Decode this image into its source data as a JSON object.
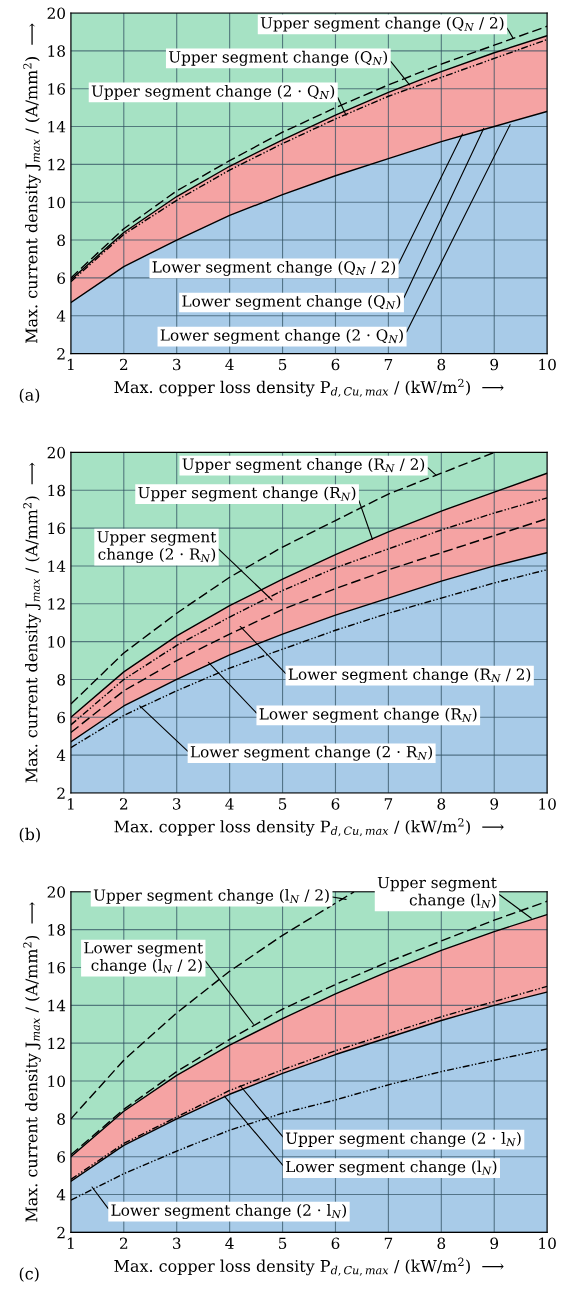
{
  "chart_data": [
    {
      "type": "line",
      "xlabel": "Max. copper loss density P$_{d,Cu,max}$ / (kW/m$^{2}$)  ⟶",
      "ylabel": "Max. current density J$_{max}$ / (A/mm$^{2}$)  ⟶",
      "x": [
        1,
        2,
        3,
        4,
        5,
        6,
        7,
        8,
        9,
        10
      ],
      "xlim": [
        1,
        10
      ],
      "ylim": [
        2,
        20
      ],
      "xticks": [
        1,
        2,
        3,
        4,
        5,
        6,
        7,
        8,
        9,
        10
      ],
      "yticks": [
        2,
        4,
        6,
        8,
        10,
        12,
        14,
        16,
        18,
        20
      ],
      "grid": true,
      "bands": [
        {
          "axis": "y",
          "from": 2,
          "to": 20,
          "color": "#a6e2c4"
        }
      ],
      "series": [
        {
          "type": "area",
          "color": "#f5a3a3",
          "values": [
            5.9,
            8.4,
            10.3,
            11.9,
            13.3,
            14.6,
            15.8,
            16.9,
            17.9,
            18.8
          ]
        },
        {
          "type": "area",
          "color": "#a8cbe8",
          "values": [
            4.7,
            6.6,
            8.0,
            9.3,
            10.4,
            11.4,
            12.3,
            13.2,
            14.0,
            14.8
          ]
        },
        {
          "color": "#000000",
          "line_style": "dashed",
          "values": [
            6.0,
            8.6,
            10.6,
            12.2,
            13.7,
            15.0,
            16.2,
            17.3,
            18.3,
            19.3
          ]
        },
        {
          "color": "#000000",
          "line_style": "dotted",
          "values": [
            5.8,
            8.3,
            10.1,
            11.7,
            13.1,
            14.4,
            15.6,
            16.6,
            17.6,
            18.6
          ]
        }
      ],
      "annotations": [
        {
          "text": "Upper segment change (Q$_{N}$ / 2)",
          "x": 9.35,
          "y": 18.7
        },
        {
          "text": "Upper segment change (Q$_{N}$)",
          "x": 7.4,
          "y": 16.2
        },
        {
          "text": "Upper segment change (2 · Q$_{N}$)",
          "x": 6.2,
          "y": 14.6
        },
        {
          "text": "Lower segment change (Q$_{N}$ / 2)",
          "x": 8.4,
          "y": 13.6
        },
        {
          "text": "Lower segment change (Q$_{N}$)",
          "x": 8.8,
          "y": 13.9
        },
        {
          "text": "Lower segment change (2 · Q$_{N}$)",
          "x": 9.3,
          "y": 14.1
        },
        "(a)"
      ]
    },
    {
      "type": "line",
      "xlabel": "Max. copper loss density P$_{d,Cu,max}$ / (kW/m$^{2}$)  ⟶",
      "ylabel": "Max. current density J$_{max}$ / (A/mm$^{2}$)  ⟶",
      "x": [
        1,
        2,
        3,
        4,
        5,
        6,
        7,
        8,
        9,
        10
      ],
      "xlim": [
        1,
        10
      ],
      "ylim": [
        2,
        20
      ],
      "xticks": [
        1,
        2,
        3,
        4,
        5,
        6,
        7,
        8,
        9,
        10
      ],
      "yticks": [
        2,
        4,
        6,
        8,
        10,
        12,
        14,
        16,
        18,
        20
      ],
      "grid": true,
      "bands": [
        {
          "axis": "y",
          "from": 2,
          "to": 20,
          "color": "#a6e2c4"
        }
      ],
      "series": [
        {
          "type": "area",
          "color": "#f5a3a3",
          "values": [
            6.0,
            8.4,
            10.3,
            11.9,
            13.3,
            14.6,
            15.8,
            16.9,
            17.9,
            18.9
          ]
        },
        {
          "type": "area",
          "color": "#a8cbe8",
          "values": [
            4.7,
            6.6,
            8.0,
            9.3,
            10.4,
            11.4,
            12.3,
            13.2,
            14.0,
            14.7
          ]
        },
        {
          "color": "#000000",
          "line_style": "dashed",
          "x": [
            1,
            2,
            3,
            4,
            5,
            6,
            7,
            8,
            9
          ],
          "values": [
            6.7,
            9.4,
            11.5,
            13.4,
            15.0,
            16.4,
            17.8,
            18.9,
            20.0
          ]
        },
        {
          "color": "#000000",
          "line_style": "dotted",
          "values": [
            5.6,
            8.0,
            9.8,
            11.3,
            12.7,
            13.9,
            14.9,
            15.9,
            16.8,
            17.6
          ]
        },
        {
          "color": "#000000",
          "line_style": "dashed",
          "values": [
            5.2,
            7.4,
            9.0,
            10.4,
            11.7,
            12.8,
            13.8,
            14.7,
            15.6,
            16.5
          ]
        },
        {
          "color": "#000000",
          "line_style": "dotted",
          "values": [
            4.4,
            6.1,
            7.4,
            8.6,
            9.6,
            10.6,
            11.5,
            12.3,
            13.1,
            13.8
          ]
        }
      ],
      "annotations": [
        {
          "text": "Upper segment change (R$_{N}$ / 2)",
          "x": 7.9,
          "y": 18.8
        },
        {
          "text": "Upper segment change (R$_{N}$)",
          "x": 6.7,
          "y": 15.4
        },
        {
          "text": "Upper segment\nchange (2 · R$_{N}$)",
          "x": 4.8,
          "y": 12.2
        },
        {
          "text": "Lower segment change (R$_{N}$ / 2)",
          "x": 4.2,
          "y": 10.8
        },
        {
          "text": "Lower segment change (R$_{N}$)",
          "x": 3.6,
          "y": 8.9
        },
        {
          "text": "Lower segment change (2 · R$_{N}$)",
          "x": 2.3,
          "y": 6.6
        },
        "(b)"
      ]
    },
    {
      "type": "line",
      "xlabel": "Max. copper loss density P$_{d,Cu,max}$ / (kW/m$^{2}$)  ⟶",
      "ylabel": "Max. current density J$_{max}$ / (A/mm$^{2}$)  ⟶",
      "x": [
        1,
        2,
        3,
        4,
        5,
        6,
        7,
        8,
        9,
        10
      ],
      "xlim": [
        1,
        10
      ],
      "ylim": [
        2,
        20
      ],
      "xticks": [
        1,
        2,
        3,
        4,
        5,
        6,
        7,
        8,
        9,
        10
      ],
      "yticks": [
        2,
        4,
        6,
        8,
        10,
        12,
        14,
        16,
        18,
        20
      ],
      "grid": true,
      "bands": [
        {
          "axis": "y",
          "from": 2,
          "to": 20,
          "color": "#a6e2c4"
        }
      ],
      "series": [
        {
          "type": "area",
          "color": "#f5a3a3",
          "values": [
            6.0,
            8.4,
            10.3,
            11.9,
            13.3,
            14.6,
            15.8,
            16.9,
            17.9,
            18.8
          ]
        },
        {
          "type": "area",
          "color": "#a8cbe8",
          "values": [
            4.7,
            6.6,
            8.0,
            9.3,
            10.4,
            11.4,
            12.3,
            13.2,
            14.0,
            14.7
          ]
        },
        {
          "color": "#000000",
          "line_style": "dashed",
          "x": [
            1,
            2,
            3,
            4,
            5,
            6,
            6.35
          ],
          "values": [
            8.0,
            11.1,
            13.6,
            15.8,
            17.7,
            19.4,
            20.0
          ]
        },
        {
          "color": "#000000",
          "line_style": "dashed",
          "values": [
            6.1,
            8.5,
            10.5,
            12.2,
            13.8,
            15.1,
            16.3,
            17.4,
            18.5,
            19.5
          ]
        },
        {
          "color": "#000000",
          "line_style": "dotted",
          "values": [
            4.8,
            6.7,
            8.1,
            9.5,
            10.6,
            11.6,
            12.5,
            13.4,
            14.2,
            15.0
          ]
        },
        {
          "color": "#000000",
          "line_style": "dotted",
          "values": [
            3.7,
            5.1,
            6.3,
            7.4,
            8.3,
            9.0,
            9.8,
            10.5,
            11.1,
            11.7
          ]
        }
      ],
      "annotations": [
        {
          "text": "Upper segment change (l$_{N}$ / 2)",
          "x": 6.2,
          "y": 19.6
        },
        {
          "text": "Upper segment\nchange (l$_{N}$)",
          "x": 9.7,
          "y": 18.6
        },
        {
          "text": "Lower segment\nchange (l$_{N}$ / 2)",
          "x": 4.45,
          "y": 13.0
        },
        {
          "text": "Upper segment change (2 · l$_{N}$)",
          "x": 4.2,
          "y": 9.75
        },
        {
          "text": "Lower segment change (l$_{N}$)",
          "x": 3.9,
          "y": 9.2
        },
        {
          "text": "Lower segment change (2 · l$_{N}$)",
          "x": 1.4,
          "y": 4.4
        },
        "(c)"
      ]
    }
  ]
}
